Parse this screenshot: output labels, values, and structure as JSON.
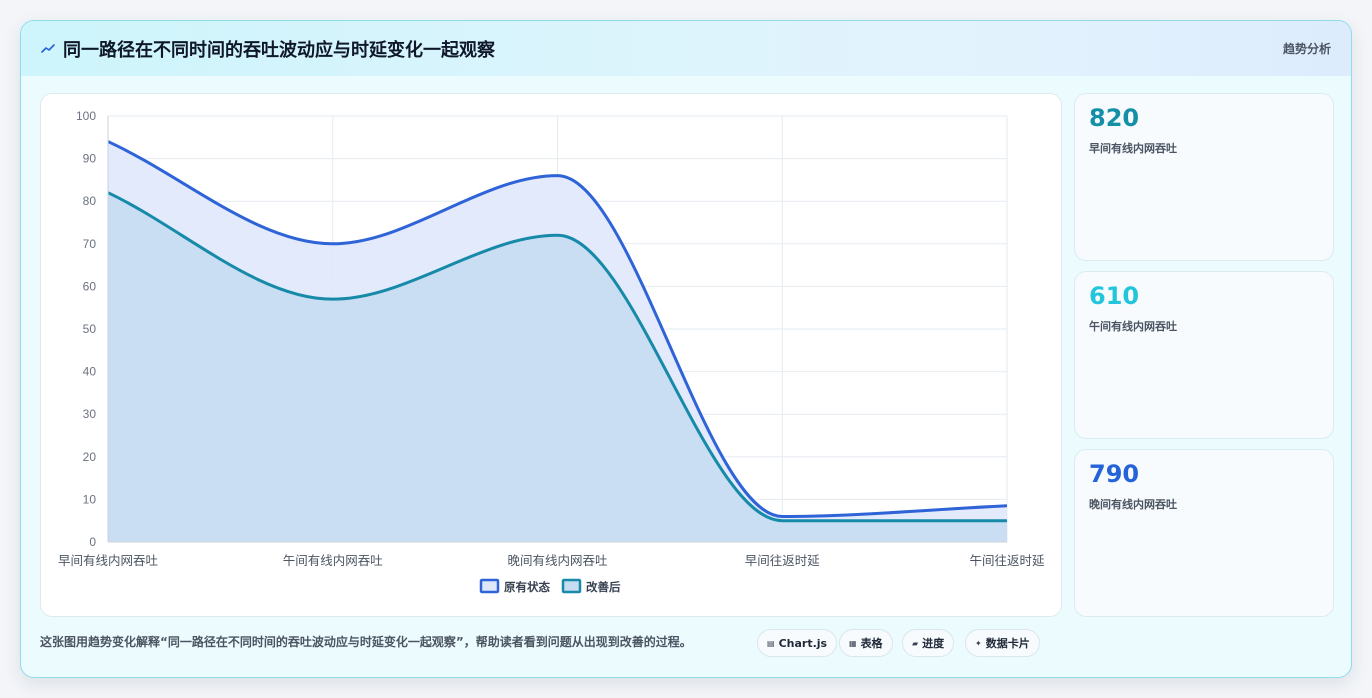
{
  "header": {
    "title": "同一路径在不同时间的吞吐波动应与时延变化一起观察",
    "tag": "趋势分析",
    "icon": "trend-line-icon"
  },
  "kpis": [
    {
      "value": "820",
      "label": "早间有线内网吞吐",
      "color": "#138fa8"
    },
    {
      "value": "610",
      "label": "午间有线内网吞吐",
      "color": "#22c5da"
    },
    {
      "value": "790",
      "label": "晚间有线内网吞吐",
      "color": "#2563d9"
    }
  ],
  "footer": {
    "note": "这张图用趋势变化解释“同一路径在不同时间的吞吐波动应与时延变化一起观察”，帮助读者看到问题从出现到改善的过程。",
    "chips": [
      {
        "icon": "chart-icon",
        "glyph": "▤",
        "label": "Chart.js"
      },
      {
        "icon": "table-icon",
        "glyph": "▦",
        "label": "表格"
      },
      {
        "icon": "progress-icon",
        "glyph": "▰",
        "label": "进度"
      },
      {
        "icon": "data-card-icon",
        "glyph": "✦",
        "label": "数据卡片"
      }
    ]
  },
  "chart_data": {
    "type": "area",
    "categories": [
      "早间有线内网吞吐",
      "午间有线内网吞吐",
      "晚间有线内网吞吐",
      "早间往返时延",
      "午间往返时延"
    ],
    "series": [
      {
        "name": "原有状态",
        "values": [
          94,
          70,
          86,
          6,
          8.5
        ],
        "color": "#2f63d8",
        "fill": "#dfe8fb"
      },
      {
        "name": "改善后",
        "values": [
          82,
          57,
          72,
          5,
          5
        ],
        "color": "#168aa8",
        "fill": "#c5dcf1"
      }
    ],
    "ylim": [
      0,
      100
    ],
    "yticks": [
      0,
      10,
      20,
      30,
      40,
      50,
      60,
      70,
      80,
      90,
      100
    ],
    "grid": true,
    "legend": "bottom"
  }
}
